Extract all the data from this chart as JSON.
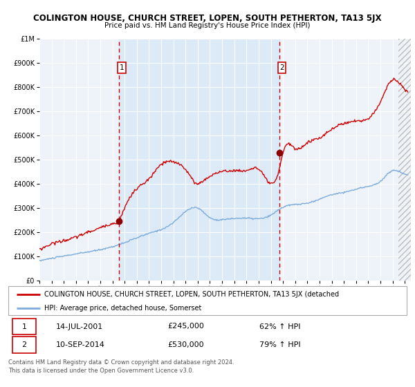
{
  "title": "COLINGTON HOUSE, CHURCH STREET, LOPEN, SOUTH PETHERTON, TA13 5JX",
  "subtitle": "Price paid vs. HM Land Registry's House Price Index (HPI)",
  "legend_line1": "COLINGTON HOUSE, CHURCH STREET, LOPEN, SOUTH PETHERTON, TA13 5JX (detached",
  "legend_line2": "HPI: Average price, detached house, Somerset",
  "marker1_date": "14-JUL-2001",
  "marker1_price": "£245,000",
  "marker1_hpi": "62% ↑ HPI",
  "marker2_date": "10-SEP-2014",
  "marker2_price": "£530,000",
  "marker2_hpi": "79% ↑ HPI",
  "footer1": "Contains HM Land Registry data © Crown copyright and database right 2024.",
  "footer2": "This data is licensed under the Open Government Licence v3.0.",
  "hpi_line_color": "#7aabdc",
  "price_line_color": "#cc0000",
  "marker_color": "#8b0000",
  "dashed_line_color": "#cc0000",
  "shade_color": "#dce9f7",
  "plot_bg": "#eef3fa",
  "grid_color": "#ffffff",
  "ylim": [
    0,
    1000000
  ],
  "xlim_start": 1995.0,
  "xlim_end": 2025.5,
  "marker1_x": 2001.54,
  "marker1_y": 245000,
  "marker2_x": 2014.71,
  "marker2_y": 530000,
  "shade_x1": 2001.54,
  "shade_x2": 2014.71,
  "hpi_anchors_t": [
    0,
    1,
    3,
    5,
    6.5,
    9,
    11,
    13,
    14,
    15,
    17,
    19,
    19.7,
    22,
    24,
    25,
    27,
    28,
    29,
    30,
    30.25
  ],
  "hpi_anchors_v": [
    82000,
    92000,
    110000,
    128000,
    148000,
    195000,
    240000,
    300000,
    260000,
    252000,
    258000,
    270000,
    295000,
    320000,
    355000,
    365000,
    390000,
    410000,
    455000,
    440000,
    438000
  ],
  "price_anchors_t": [
    0,
    0.5,
    1,
    2,
    3,
    4,
    5,
    6,
    6.5,
    7,
    8,
    9,
    10,
    11,
    12,
    13,
    13.5,
    14,
    14.5,
    15,
    16,
    17,
    18,
    19.7,
    20,
    21,
    22,
    23,
    24,
    25,
    26,
    27,
    28,
    29,
    30,
    30.25
  ],
  "price_anchors_v": [
    130000,
    140000,
    152000,
    165000,
    180000,
    200000,
    218000,
    235000,
    245000,
    300000,
    380000,
    420000,
    480000,
    490000,
    460000,
    400000,
    415000,
    430000,
    445000,
    450000,
    455000,
    455000,
    460000,
    460000,
    530000,
    545000,
    570000,
    590000,
    625000,
    650000,
    660000,
    670000,
    740000,
    830000,
    790000,
    780000
  ]
}
